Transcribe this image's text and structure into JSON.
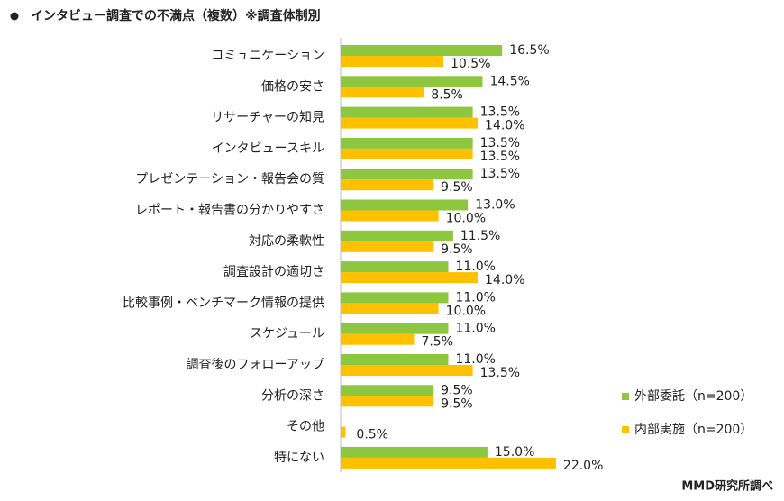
{
  "chart_data": {
    "type": "bar",
    "orientation": "horizontal",
    "title": "インタビュー調査での不満点（複数）※調査体制別",
    "source": "MMD研究所調べ",
    "categories": [
      "コミュニケーション",
      "価格の安さ",
      "リサーチャーの知見",
      "インタビュースキル",
      "プレゼンテーション・報告会の質",
      "レポート・報告書の分かりやすさ",
      "対応の柔軟性",
      "調査設計の適切さ",
      "比較事例・ベンチマーク情報の提供",
      "スケジュール",
      "調査後のフォローアップ",
      "分析の深さ",
      "その他",
      "特にない"
    ],
    "series": [
      {
        "name": "外部委託（n=200）",
        "color": "#8dc63f",
        "values": [
          16.5,
          14.5,
          13.5,
          13.5,
          13.5,
          13.0,
          11.5,
          11.0,
          11.0,
          11.0,
          11.0,
          9.5,
          null,
          15.0
        ],
        "value_labels": [
          "16.5%",
          "14.5%",
          "13.5%",
          "13.5%",
          "13.5%",
          "13.0%",
          "11.5%",
          "11.0%",
          "11.0%",
          "11.0%",
          "11.0%",
          "9.5%",
          null,
          "15.0%"
        ]
      },
      {
        "name": "内部実施（n=200）",
        "color": "#ffc000",
        "values": [
          10.5,
          8.5,
          14.0,
          13.5,
          9.5,
          10.0,
          9.5,
          14.0,
          10.0,
          7.5,
          13.5,
          9.5,
          0.5,
          22.0
        ],
        "value_labels": [
          "10.5%",
          "8.5%",
          "14.0%",
          "13.5%",
          "9.5%",
          "10.0%",
          "9.5%",
          "14.0%",
          "10.0%",
          "7.5%",
          "13.5%",
          "9.5%",
          "0.5%",
          "22.0%"
        ]
      }
    ]
  }
}
